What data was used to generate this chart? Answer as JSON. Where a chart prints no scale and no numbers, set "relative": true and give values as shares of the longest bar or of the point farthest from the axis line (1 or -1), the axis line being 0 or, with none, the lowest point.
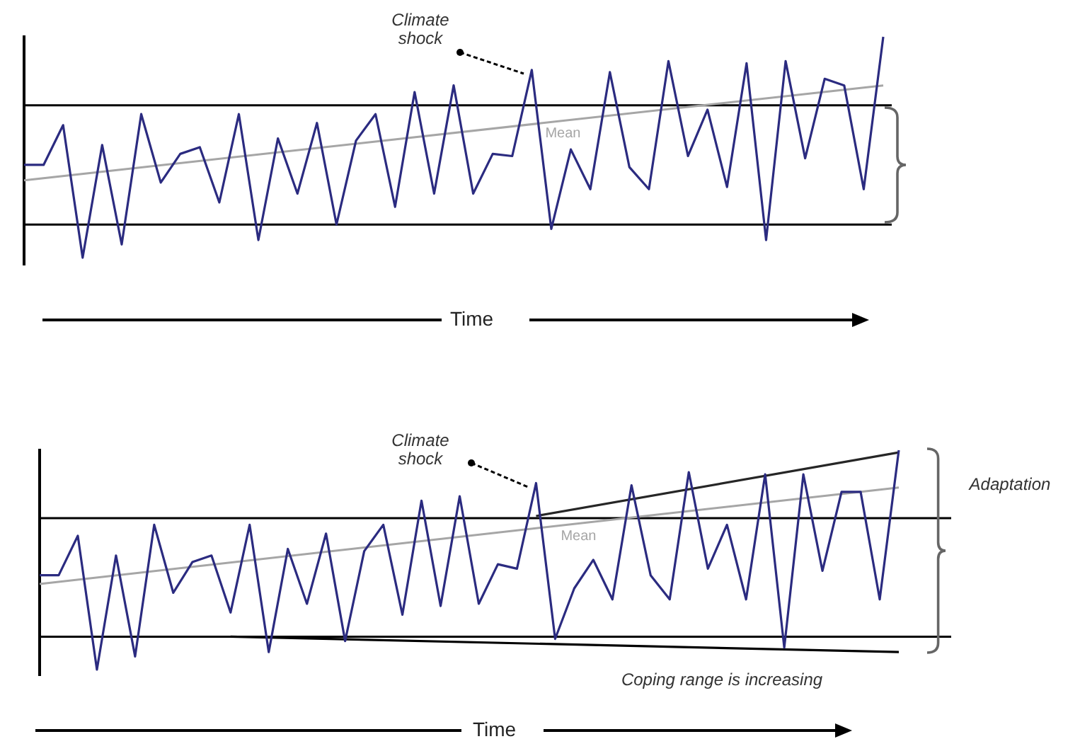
{
  "chart_data": [
    {
      "type": "line",
      "relative": true,
      "xlabel": "Time",
      "legend": false,
      "marker": "none",
      "annotations": [
        "Climate shock"
      ],
      "categories": [
        null,
        null,
        null,
        null,
        null,
        null,
        null,
        null,
        null,
        null,
        null,
        null,
        null,
        null,
        null,
        null,
        null,
        null,
        null,
        null,
        null,
        null,
        null,
        null,
        null,
        null,
        null,
        null,
        null,
        null,
        null,
        null,
        null,
        null,
        null,
        null,
        null,
        null,
        null,
        null,
        null,
        null,
        null,
        null,
        null
      ],
      "ref_lines": [
        {
          "axis": "y",
          "value": 0.69,
          "color": "#000000"
        },
        {
          "axis": "y",
          "value": 0.15,
          "color": "#000000"
        }
      ],
      "series": [
        {
          "color": "#2b2b80",
          "values": [
            0.42,
            0.42,
            0.6,
            0,
            0.51,
            0.06,
            0.65,
            0.34,
            0.47,
            0.5,
            0.25,
            0.65,
            0.08,
            0.54,
            0.29,
            0.61,
            0.15,
            0.53,
            0.65,
            0.23,
            0.75,
            0.29,
            0.78,
            0.29,
            0.47,
            0.46,
            0.85,
            0.13,
            0.49,
            0.31,
            0.84,
            0.41,
            0.31,
            0.89,
            0.46,
            0.67,
            0.32,
            0.88,
            0.08,
            0.89,
            0.45,
            0.81,
            0.78,
            0.31,
            1
          ]
        },
        {
          "name": "Mean",
          "type": "line",
          "color": "#a6a6a6",
          "values": [
            0.35,
            null,
            null,
            null,
            null,
            null,
            null,
            null,
            null,
            null,
            null,
            null,
            null,
            null,
            null,
            null,
            null,
            null,
            null,
            null,
            null,
            null,
            null,
            null,
            null,
            null,
            null,
            null,
            null,
            null,
            null,
            null,
            null,
            null,
            null,
            null,
            null,
            null,
            null,
            null,
            null,
            null,
            null,
            null,
            0.78
          ]
        }
      ]
    },
    {
      "type": "line",
      "relative": true,
      "xlabel": "Time",
      "legend": false,
      "marker": "none",
      "annotations": [
        "Climate shock",
        "Adaptation",
        "Coping range is increasing"
      ],
      "categories": [
        null,
        null,
        null,
        null,
        null,
        null,
        null,
        null,
        null,
        null,
        null,
        null,
        null,
        null,
        null,
        null,
        null,
        null,
        null,
        null,
        null,
        null,
        null,
        null,
        null,
        null,
        null,
        null,
        null,
        null,
        null,
        null,
        null,
        null,
        null,
        null,
        null,
        null,
        null,
        null,
        null,
        null,
        null,
        null,
        null,
        null
      ],
      "ref_lines": [
        {
          "axis": "y",
          "value": 0.69,
          "color": "#000000"
        },
        {
          "axis": "y",
          "value": 0.15,
          "color": "#000000"
        }
      ],
      "series": [
        {
          "color": "#2b2b80",
          "values": [
            0.43,
            0.43,
            0.61,
            0,
            0.52,
            0.06,
            0.66,
            0.35,
            0.49,
            0.52,
            0.26,
            0.66,
            0.08,
            0.55,
            0.3,
            0.62,
            0.13,
            0.54,
            0.66,
            0.25,
            0.77,
            0.29,
            0.79,
            0.3,
            0.48,
            0.46,
            0.85,
            0.14,
            0.37,
            0.5,
            0.32,
            0.84,
            0.43,
            0.32,
            0.9,
            0.46,
            0.66,
            0.32,
            0.89,
            0.1,
            0.89,
            0.45,
            0.81,
            0.81,
            0.32,
            1
          ]
        },
        {
          "name": "Mean",
          "type": "line",
          "color": "#a6a6a6",
          "values": [
            0.39,
            null,
            null,
            null,
            null,
            null,
            null,
            null,
            null,
            null,
            null,
            null,
            null,
            null,
            null,
            null,
            null,
            null,
            null,
            null,
            null,
            null,
            null,
            null,
            null,
            null,
            null,
            null,
            null,
            null,
            null,
            null,
            null,
            null,
            null,
            null,
            null,
            null,
            null,
            null,
            null,
            null,
            null,
            null,
            null,
            0.83
          ]
        },
        {
          "type": "line",
          "color": "#262626",
          "values": [
            null,
            null,
            null,
            null,
            null,
            null,
            null,
            null,
            null,
            null,
            null,
            null,
            null,
            null,
            null,
            null,
            null,
            null,
            null,
            null,
            null,
            null,
            null,
            null,
            null,
            null,
            0.7,
            null,
            null,
            null,
            null,
            null,
            null,
            null,
            null,
            null,
            null,
            null,
            null,
            null,
            null,
            null,
            null,
            null,
            null,
            0.99
          ]
        },
        {
          "type": "line",
          "color": "#000000",
          "values": [
            null,
            null,
            null,
            null,
            null,
            null,
            null,
            null,
            null,
            null,
            0.15,
            null,
            null,
            null,
            null,
            null,
            null,
            null,
            null,
            null,
            null,
            null,
            null,
            null,
            null,
            null,
            null,
            null,
            null,
            null,
            null,
            null,
            null,
            null,
            null,
            null,
            null,
            null,
            null,
            null,
            null,
            null,
            null,
            null,
            null,
            0.08
          ]
        }
      ]
    }
  ]
}
